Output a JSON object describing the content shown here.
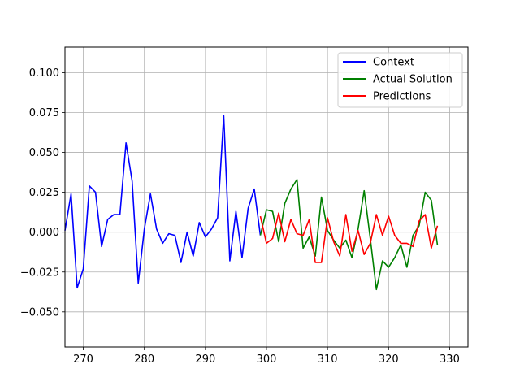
{
  "chart_data": {
    "type": "line",
    "title": "",
    "xlabel": "",
    "ylabel": "",
    "xlim": [
      267,
      333
    ],
    "ylim": [
      -0.072,
      0.116
    ],
    "xticks": [
      270,
      280,
      290,
      300,
      310,
      320,
      330
    ],
    "xtick_labels": [
      "270",
      "280",
      "290",
      "300",
      "310",
      "320",
      "330"
    ],
    "yticks": [
      -0.05,
      -0.025,
      0.0,
      0.025,
      0.05,
      0.075,
      0.1
    ],
    "ytick_labels": [
      "−0.050",
      "−0.025",
      "0.000",
      "0.025",
      "0.050",
      "0.075",
      "0.100"
    ],
    "grid": true,
    "legend_position": "top-right",
    "series": [
      {
        "name": "Context",
        "color": "#0000ff",
        "x": [
          267,
          268,
          269,
          270,
          271,
          272,
          273,
          274,
          275,
          276,
          277,
          278,
          279,
          280,
          281,
          282,
          283,
          284,
          285,
          286,
          287,
          288,
          289,
          290,
          291,
          292,
          293,
          294,
          295,
          296,
          297,
          298,
          299
        ],
        "y": [
          0.001,
          0.024,
          -0.035,
          -0.023,
          0.029,
          0.025,
          -0.009,
          0.008,
          0.011,
          0.011,
          0.056,
          0.032,
          -0.032,
          0.002,
          0.024,
          0.002,
          -0.007,
          -0.001,
          -0.002,
          -0.019,
          0.0,
          -0.015,
          0.006,
          -0.003,
          0.002,
          0.009,
          0.073,
          -0.018,
          0.013,
          -0.016,
          0.015,
          0.027,
          -0.002
        ]
      },
      {
        "name": "Actual Solution",
        "color": "#008000",
        "x": [
          299,
          300,
          301,
          302,
          303,
          304,
          305,
          306,
          307,
          308,
          309,
          310,
          311,
          312,
          313,
          314,
          315,
          316,
          317,
          318,
          319,
          320,
          321,
          322,
          323,
          324,
          325,
          326,
          327,
          328
        ],
        "y": [
          -0.002,
          0.014,
          0.013,
          -0.006,
          0.018,
          0.027,
          0.033,
          -0.01,
          -0.003,
          -0.015,
          0.022,
          0.001,
          -0.005,
          -0.01,
          -0.005,
          -0.016,
          0.002,
          0.026,
          -0.004,
          -0.036,
          -0.018,
          -0.022,
          -0.016,
          -0.008,
          -0.022,
          -0.002,
          0.004,
          0.025,
          0.02,
          -0.008
        ]
      },
      {
        "name": "Predictions",
        "color": "#ff0000",
        "x": [
          299,
          300,
          301,
          302,
          303,
          304,
          305,
          306,
          307,
          308,
          309,
          310,
          311,
          312,
          313,
          314,
          315,
          316,
          317,
          318,
          319,
          320,
          321,
          322,
          323,
          324,
          325,
          326,
          327,
          328
        ],
        "y": [
          0.01,
          -0.007,
          -0.004,
          0.012,
          -0.006,
          0.008,
          -0.001,
          -0.002,
          0.008,
          -0.019,
          -0.019,
          0.009,
          -0.006,
          -0.015,
          0.011,
          -0.012,
          0.001,
          -0.014,
          -0.007,
          0.011,
          -0.002,
          0.01,
          -0.002,
          -0.007,
          -0.007,
          -0.009,
          0.007,
          0.011,
          -0.01,
          0.004
        ]
      }
    ]
  }
}
